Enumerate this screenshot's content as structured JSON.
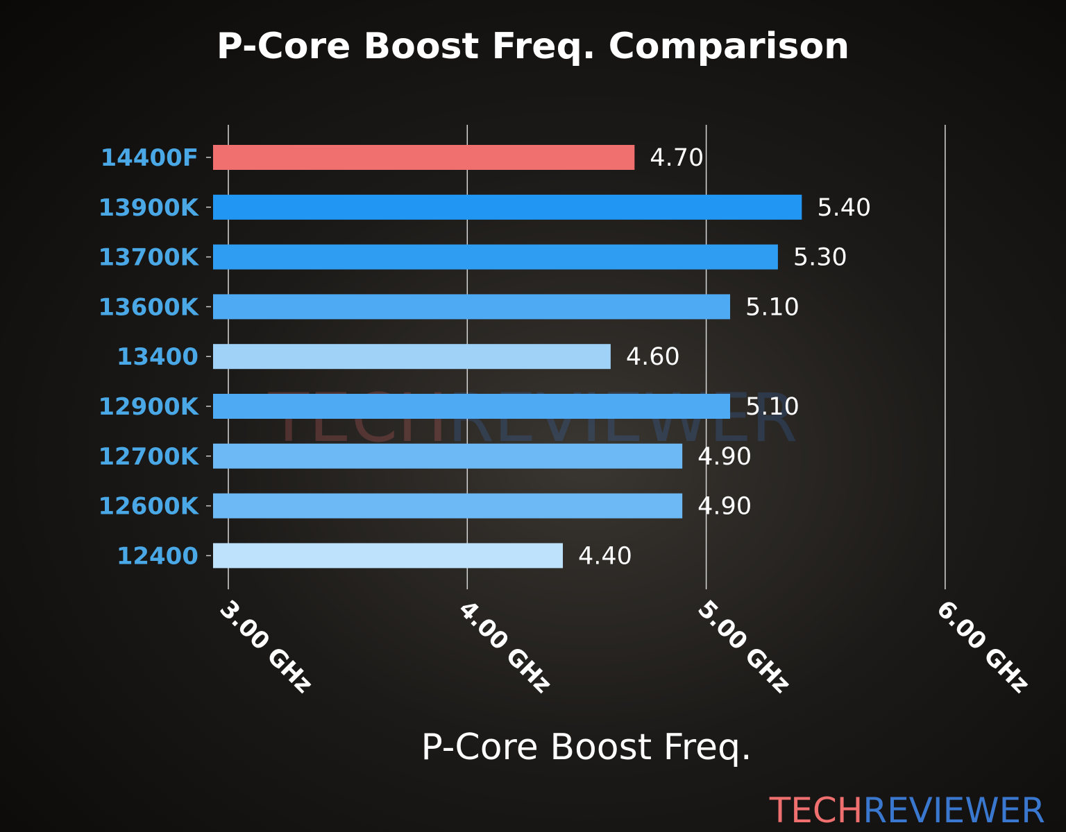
{
  "chart_data": {
    "type": "bar",
    "orientation": "horizontal",
    "title": "P-Core Boost Freq. Comparison",
    "xlabel": "P-Core Boost Freq.",
    "ylabel": "",
    "categories": [
      "14400F",
      "13900K",
      "13700K",
      "13600K",
      "13400",
      "12900K",
      "12700K",
      "12600K",
      "12400"
    ],
    "values": [
      4.7,
      5.4,
      5.3,
      5.1,
      4.6,
      5.1,
      4.9,
      4.9,
      4.4
    ],
    "value_labels": [
      "4.70",
      "5.40",
      "5.30",
      "5.10",
      "4.60",
      "5.10",
      "4.90",
      "4.90",
      "4.40"
    ],
    "bar_colors": [
      "#f07070",
      "#2196f3",
      "#2f9df1",
      "#4eaaf3",
      "#a0d2f8",
      "#4eaaf3",
      "#6cb9f5",
      "#6cb9f5",
      "#bee1fc"
    ],
    "xticks": [
      3,
      4,
      5,
      6
    ],
    "xtick_labels": [
      "3.00 GHz",
      "4.00 GHz",
      "5.00 GHz",
      "6.00 GHz"
    ],
    "xlim": [
      2.94,
      6.1
    ],
    "grid": "vertical",
    "category_label_color": "#4aa8e6"
  },
  "watermark": {
    "part1": "TECH",
    "part2": "REVIEWER",
    "color1": "#f07070",
    "color2": "#3a78d0"
  }
}
